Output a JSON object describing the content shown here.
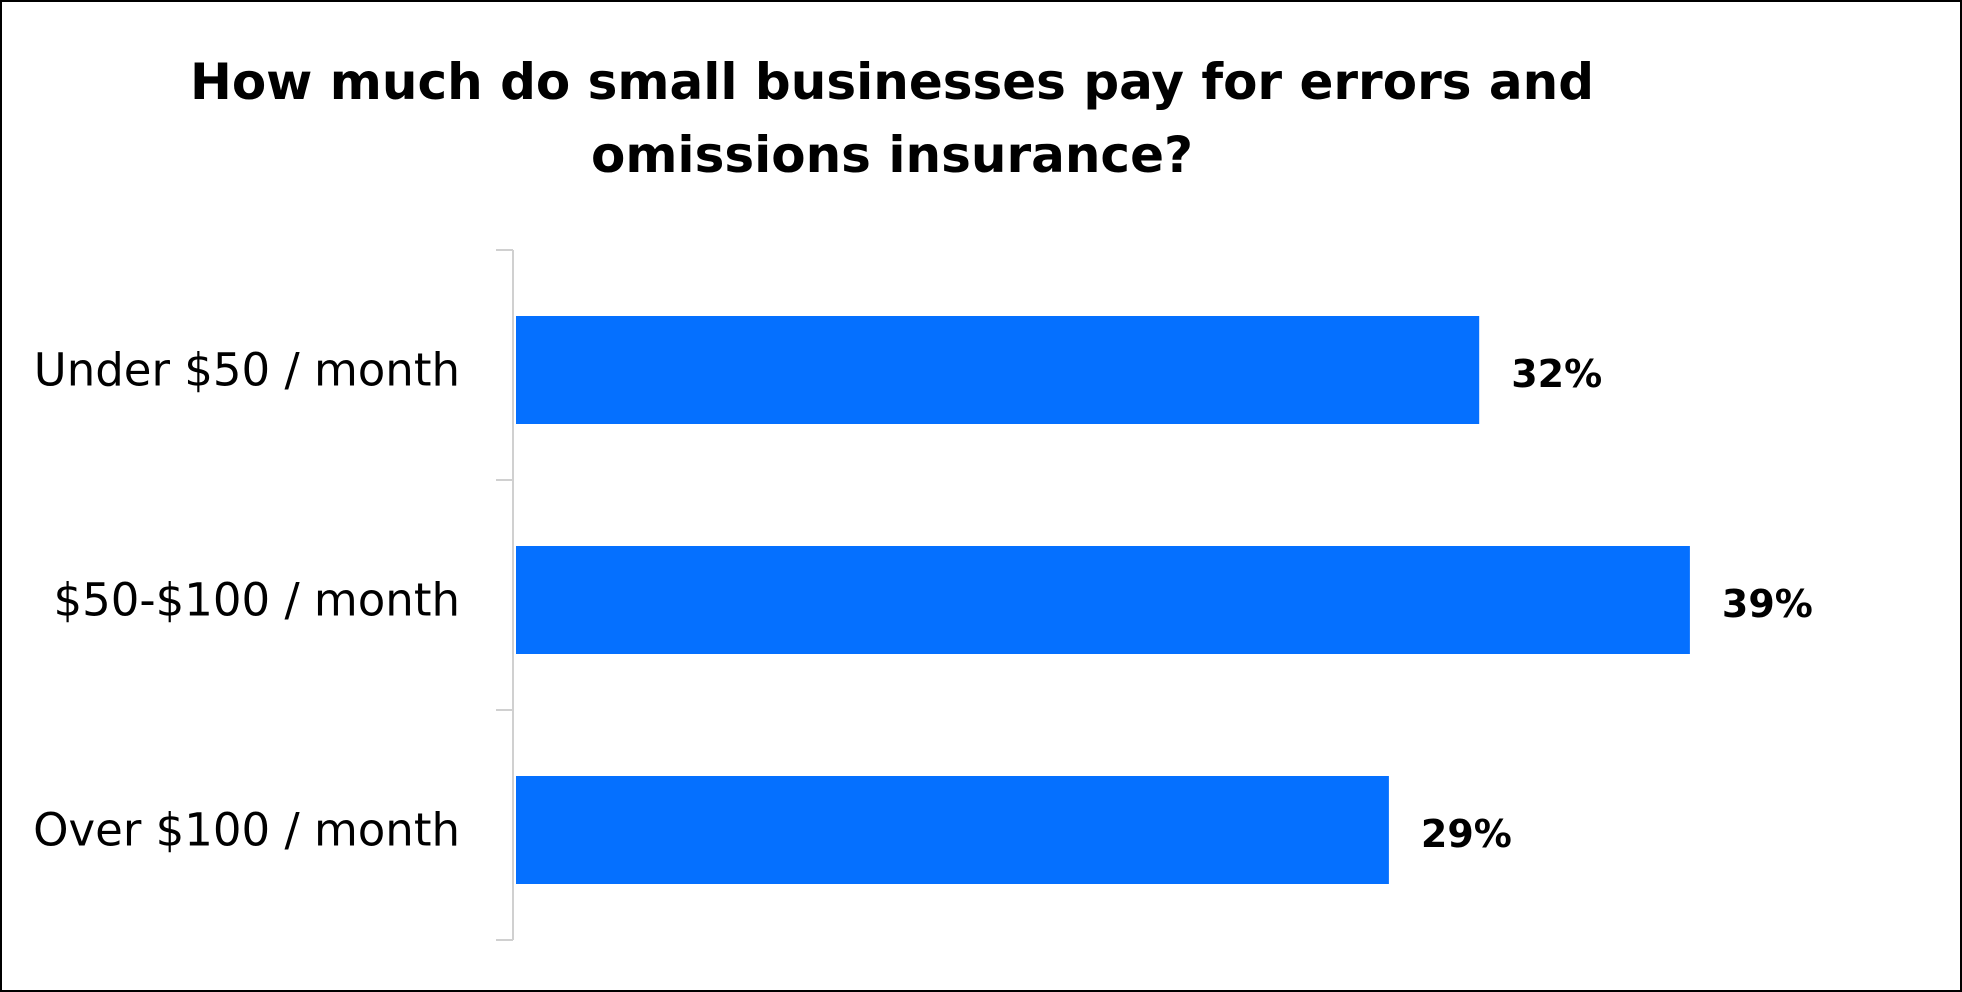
{
  "chart_data": {
    "type": "bar",
    "orientation": "horizontal",
    "title": "How much do small businesses pay for errors and omissions insurance?",
    "categories": [
      "Under $50 / month",
      "$50-$100 / month",
      "Over $100 / month"
    ],
    "values": [
      32,
      39,
      29
    ],
    "value_labels": [
      "32%",
      "39%",
      "29%"
    ],
    "unit": "%",
    "xlim": [
      0,
      40
    ],
    "grid": false,
    "legend": "none",
    "bar_color": "#0570FF",
    "axis_color": "#D0D0D0"
  }
}
